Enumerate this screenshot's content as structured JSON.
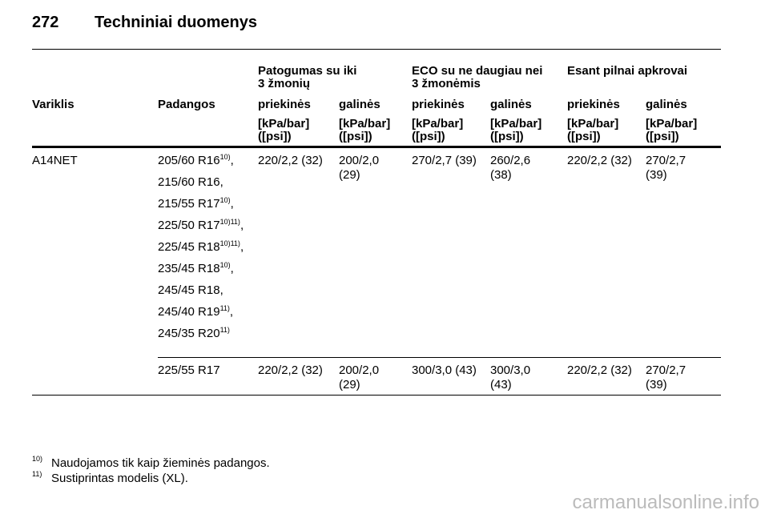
{
  "header": {
    "page": "272",
    "title": "Techniniai duomenys"
  },
  "table": {
    "groups": [
      [
        "Patogumas su iki",
        "3 žmonių"
      ],
      [
        "ECO su ne daugiau nei",
        "3 žmonėmis"
      ],
      [
        "Esant pilnai apkrovai"
      ]
    ],
    "columns": [
      "Variklis",
      "Padangos",
      "priekinės",
      "galinės",
      "priekinės",
      "galinės",
      "priekinės",
      "galinės"
    ],
    "units": [
      [
        "[kPa/bar]",
        "([psi])"
      ],
      [
        "[kPa/bar]",
        "([psi])"
      ],
      [
        "[kPa/bar]",
        "([psi])"
      ],
      [
        "[kPa/bar]",
        "([psi])"
      ],
      [
        "[kPa/bar]",
        "([psi])"
      ],
      [
        "[kPa/bar]",
        "([psi])"
      ]
    ],
    "rows": [
      {
        "engine": "A14NET",
        "tires": [
          {
            "size": "205/60 R16",
            "note": "10)",
            "punct": ","
          },
          {
            "size": "215/60 R16,"
          },
          {
            "size": "215/55 R17",
            "note": "10)",
            "punct": ","
          },
          {
            "size": "225/50 R17",
            "note": "10)11)",
            "punct": ","
          },
          {
            "size": "225/45 R18",
            "note": "10)11)",
            "punct": ","
          },
          {
            "size": "235/45 R18",
            "note": "10)",
            "punct": ","
          },
          {
            "size": "245/45 R18,"
          },
          {
            "size": "245/40 R19",
            "note": "11)",
            "punct": ","
          },
          {
            "size": "245/35 R20",
            "note": "11)"
          }
        ],
        "values": [
          [
            "220/2,2 (32)"
          ],
          [
            "200/2,0",
            "(29)"
          ],
          [
            "270/2,7 (39)"
          ],
          [
            "260/2,6",
            "(38)"
          ],
          [
            "220/2,2 (32)"
          ],
          [
            "270/2,7",
            "(39)"
          ]
        ]
      },
      {
        "tires": [
          {
            "size": "225/55 R17"
          }
        ],
        "values": [
          [
            "220/2,2 (32)"
          ],
          [
            "200/2,0",
            "(29)"
          ],
          [
            "300/3,0 (43)"
          ],
          [
            "300/3,0",
            "(43)"
          ],
          [
            "220/2,2 (32)"
          ],
          [
            "270/2,7",
            "(39)"
          ]
        ]
      }
    ]
  },
  "footnotes": [
    {
      "mark": "10)",
      "text": "Naudojamos tik kaip žieminės padangos."
    },
    {
      "mark": "11)",
      "text": "Sustiprintas modelis (XL)."
    }
  ],
  "watermark": "carmanualsonline.info"
}
